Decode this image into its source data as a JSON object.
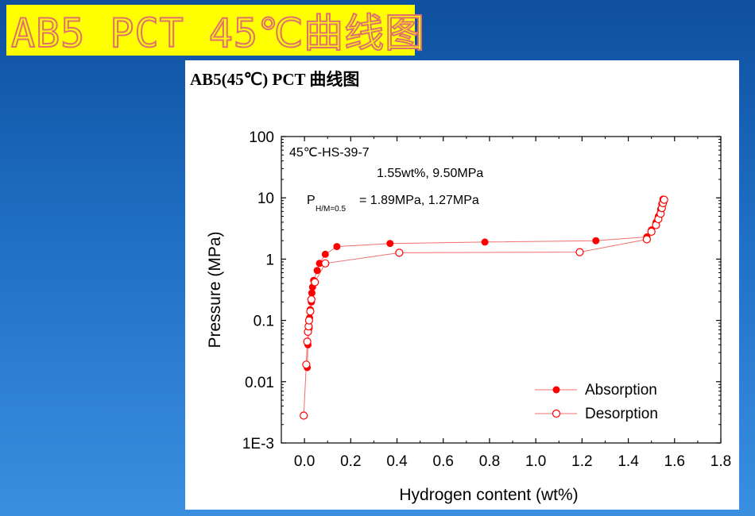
{
  "slide": {
    "title": "AB5 PCT 45℃曲线图"
  },
  "figure": {
    "heading": "AB5(45℃)    PCT 曲线图"
  },
  "chart_data": {
    "type": "scatter",
    "title": "",
    "xlabel": "Hydrogen content (wt%)",
    "ylabel": "Pressure (MPa)",
    "xlim": [
      -0.1,
      1.8
    ],
    "ylim": [
      0.001,
      100
    ],
    "yscale": "log",
    "x_ticks": [
      "0.0",
      "0.2",
      "0.4",
      "0.6",
      "0.8",
      "1.0",
      "1.2",
      "1.4",
      "1.6",
      "1.8"
    ],
    "y_ticks": [
      "1E-3",
      "0.01",
      "0.1",
      "1",
      "10",
      "100"
    ],
    "annotations": {
      "sample": "45℃-HS-39-7",
      "capacity": "1.55wt%, 9.50MPa",
      "plateau_prefix": "P",
      "plateau_sub": "H/M=0.5",
      "plateau_value": "= 1.89MPa, 1.27MPa"
    },
    "legend_position": "bottom-right",
    "colors": {
      "series": "#ff0000",
      "line": "#f07070"
    },
    "series": [
      {
        "name": "Absorption",
        "marker": "filled-circle",
        "points": [
          [
            0.012,
            0.017
          ],
          [
            0.015,
            0.04
          ],
          [
            0.02,
            0.075
          ],
          [
            0.022,
            0.11
          ],
          [
            0.025,
            0.15
          ],
          [
            0.03,
            0.2
          ],
          [
            0.032,
            0.28
          ],
          [
            0.035,
            0.35
          ],
          [
            0.04,
            0.45
          ],
          [
            0.055,
            0.65
          ],
          [
            0.065,
            0.85
          ],
          [
            0.09,
            1.2
          ],
          [
            0.14,
            1.6
          ],
          [
            0.37,
            1.8
          ],
          [
            0.78,
            1.9
          ],
          [
            1.26,
            2.0
          ],
          [
            1.48,
            2.3
          ],
          [
            1.5,
            3.0
          ],
          [
            1.52,
            4.0
          ],
          [
            1.53,
            5.0
          ],
          [
            1.54,
            6.5
          ],
          [
            1.545,
            8.0
          ],
          [
            1.55,
            9.5
          ]
        ]
      },
      {
        "name": "Desorption",
        "marker": "open-circle",
        "points": [
          [
            -0.003,
            0.0028
          ],
          [
            0.008,
            0.019
          ],
          [
            0.012,
            0.045
          ],
          [
            0.015,
            0.065
          ],
          [
            0.018,
            0.08
          ],
          [
            0.02,
            0.1
          ],
          [
            0.025,
            0.14
          ],
          [
            0.03,
            0.22
          ],
          [
            0.045,
            0.42
          ],
          [
            0.09,
            0.85
          ],
          [
            0.41,
            1.27
          ],
          [
            1.19,
            1.3
          ],
          [
            1.48,
            2.1
          ],
          [
            1.5,
            2.8
          ],
          [
            1.52,
            3.6
          ],
          [
            1.53,
            4.5
          ],
          [
            1.54,
            5.5
          ],
          [
            1.545,
            6.8
          ],
          [
            1.55,
            8.2
          ],
          [
            1.555,
            9.3
          ]
        ]
      }
    ]
  }
}
